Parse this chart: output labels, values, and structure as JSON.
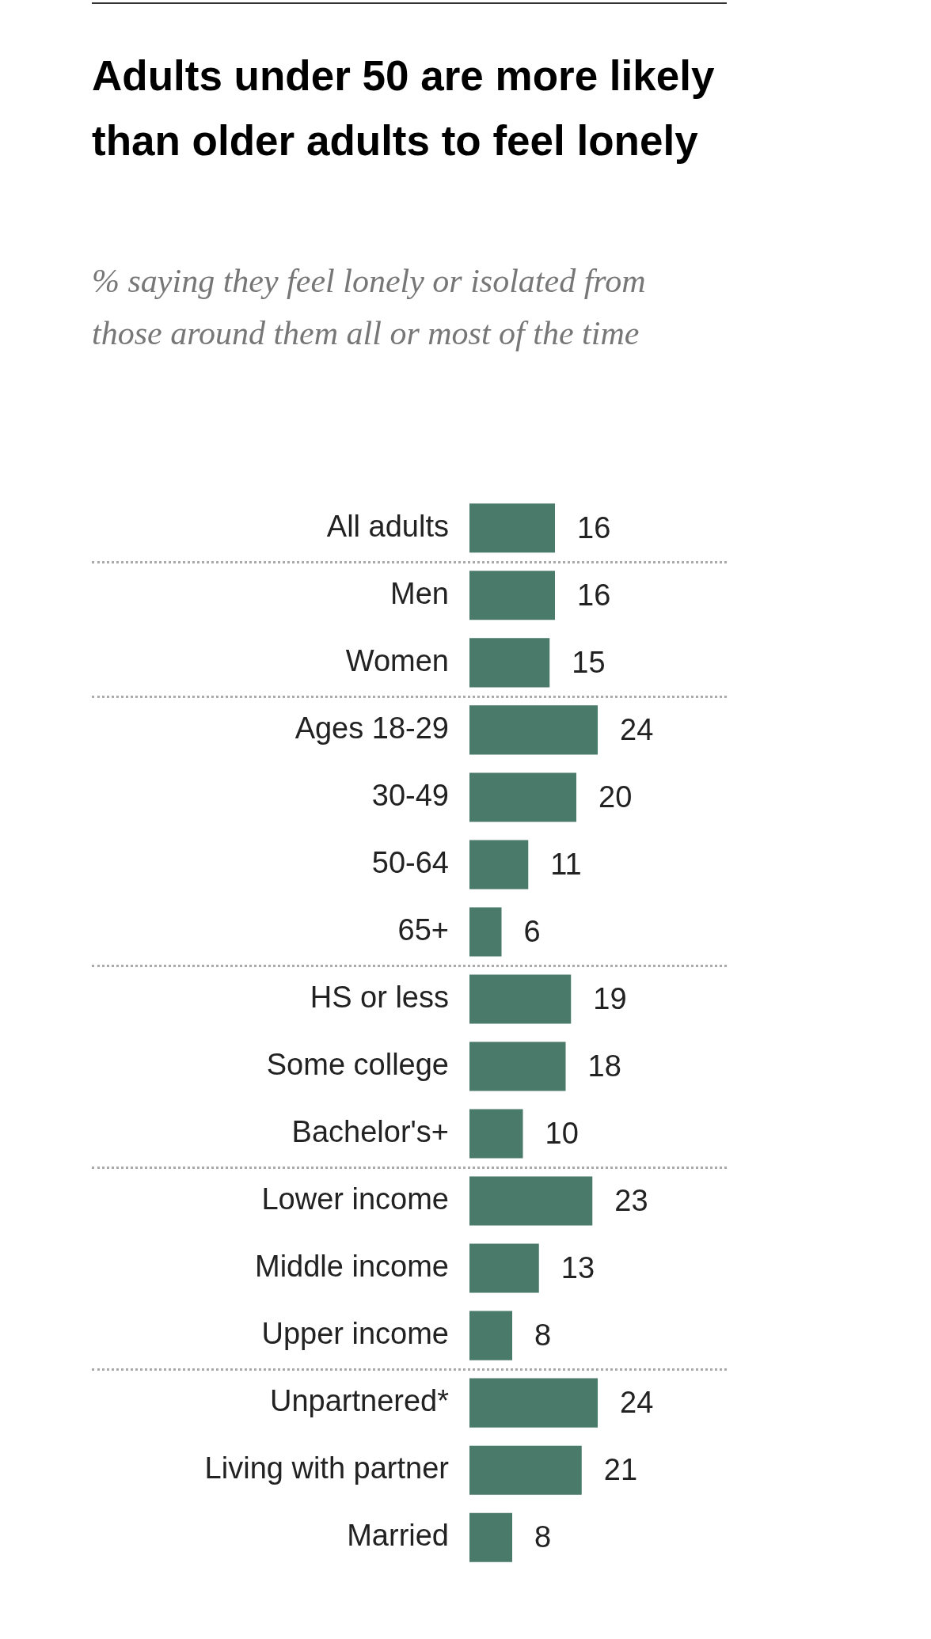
{
  "chart_data": {
    "type": "bar",
    "orientation": "horizontal",
    "title": "Adults under 50 are more likely than older adults to feel lonely",
    "subtitle": "% saying they feel lonely or isolated from those around them all or most of the time",
    "categories": [
      "All adults",
      "Men",
      "Women",
      "Ages 18-29",
      "30-49",
      "50-64",
      "65+",
      "HS or less",
      "Some college",
      "Bachelor's+",
      "Lower income",
      "Middle income",
      "Upper income",
      "Unpartnered*",
      "Living with partner",
      "Married"
    ],
    "values": [
      16,
      16,
      15,
      24,
      20,
      11,
      6,
      19,
      18,
      10,
      23,
      13,
      8,
      24,
      21,
      8
    ],
    "color": "#4a7a6a",
    "data_labels": true,
    "legend": false
  }
}
